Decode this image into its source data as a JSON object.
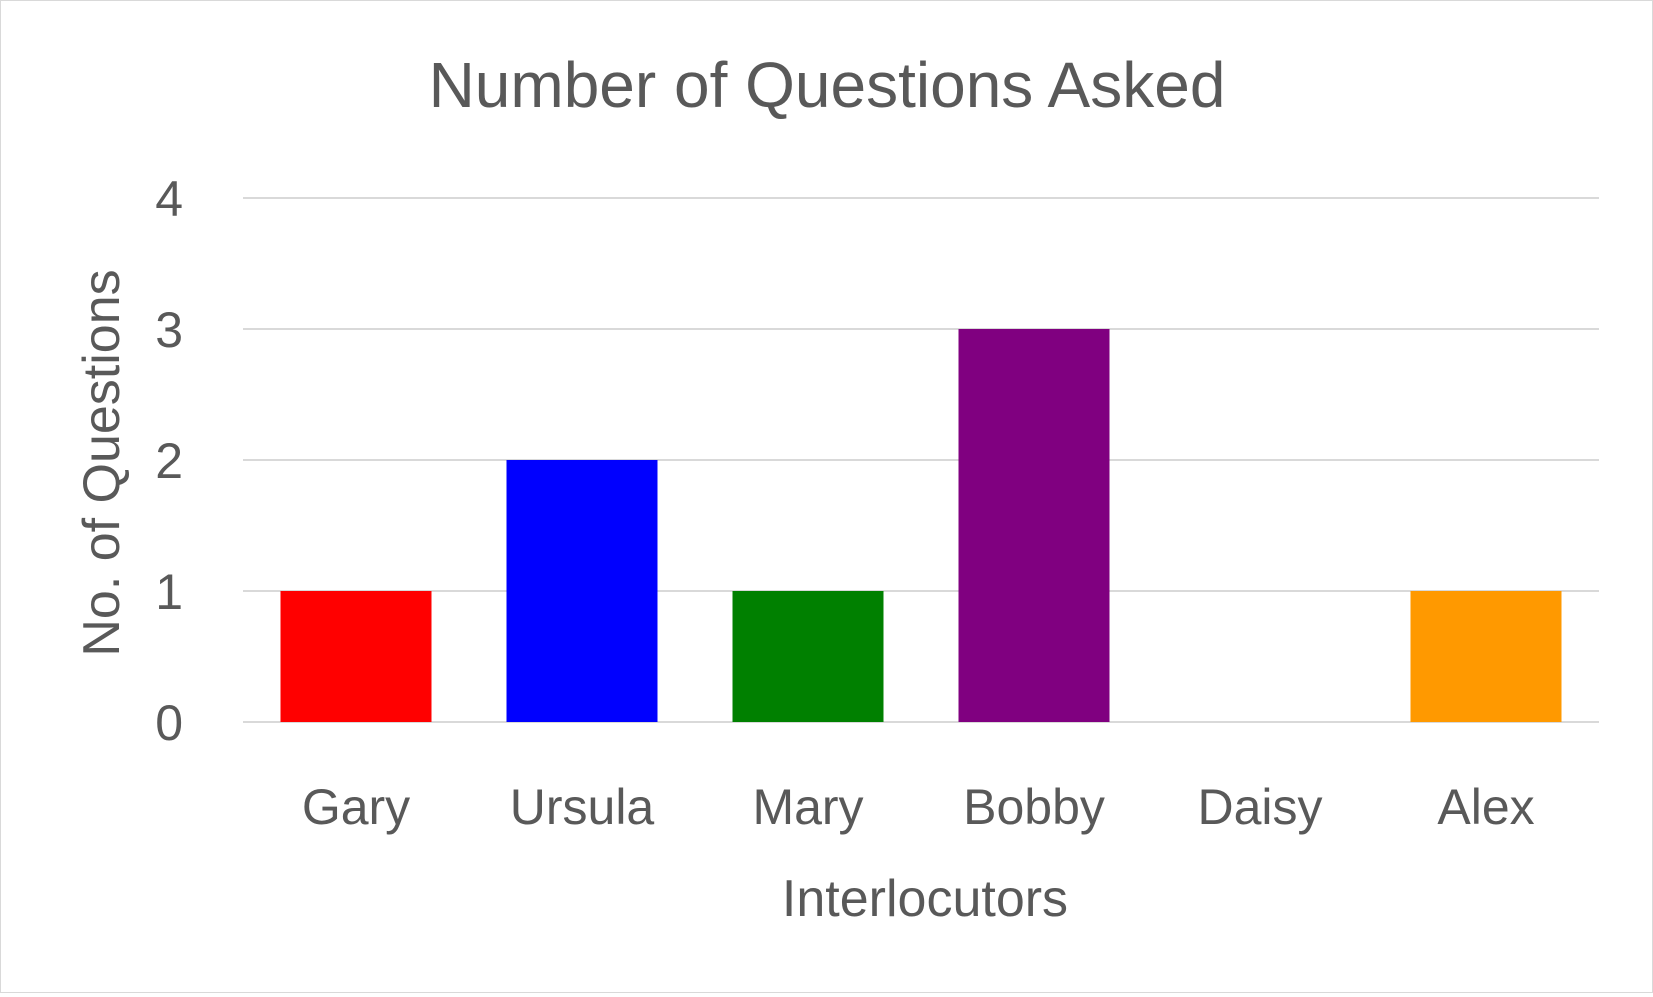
{
  "chart_data": {
    "type": "bar",
    "title": "Number of Questions Asked",
    "xlabel": "Interlocutors",
    "ylabel": "No. of Questions",
    "categories": [
      "Gary",
      "Ursula",
      "Mary",
      "Bobby",
      "Daisy",
      "Alex"
    ],
    "values": [
      1,
      2,
      1,
      3,
      0,
      1
    ],
    "colors": [
      "#ff0000",
      "#0000ff",
      "#008000",
      "#800080",
      "#ffc0cb",
      "#ff9900"
    ],
    "ylim": [
      0,
      4
    ],
    "yticks": [
      "0",
      "1",
      "2",
      "3",
      "4"
    ],
    "grid": true,
    "gridline_color": "#d9d9d9",
    "legend": "none"
  }
}
